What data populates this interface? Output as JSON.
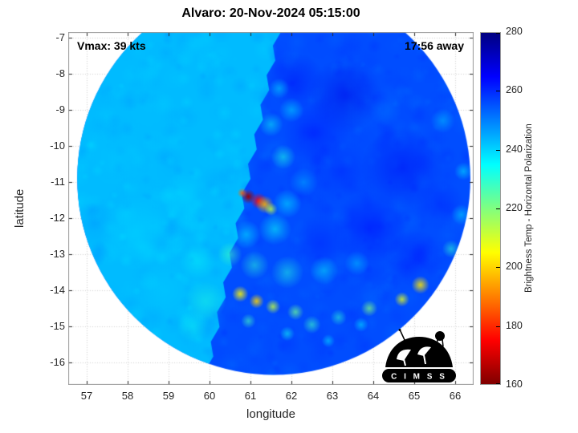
{
  "title": "Alvaro: 20-Nov-2024 05:15:00",
  "annotations": {
    "vmax": "Vmax: 39 kts",
    "away": "17:56 away"
  },
  "logo": {
    "text": "C I M S S"
  },
  "chart_data": {
    "type": "heatmap",
    "title": "Alvaro: 20-Nov-2024 05:15:00",
    "xlabel": "longitude",
    "ylabel": "latitude",
    "xlim": [
      56.55,
      66.45
    ],
    "ylim": [
      -16.62,
      -6.84
    ],
    "x_ticks": [
      57,
      58,
      59,
      60,
      61,
      62,
      63,
      64,
      65,
      66
    ],
    "y_ticks": [
      -7,
      -8,
      -9,
      -10,
      -11,
      -12,
      -13,
      -14,
      -15,
      -16
    ],
    "grid": true,
    "colorbar": {
      "label": "Brightness Temp - Horizontal Polarization",
      "min": 160,
      "max": 280,
      "ticks": [
        160,
        180,
        200,
        220,
        240,
        260,
        280
      ],
      "colormap": "jet_reversed",
      "position": "right"
    },
    "swath": {
      "center": [
        61.57,
        -10.9
      ],
      "radius_deg": 4.8,
      "seam": [
        [
          61.47,
          -7.95
        ],
        [
          59.96,
          -16.13
        ]
      ],
      "left_base_temp": 243,
      "right_base_temp": 256
    },
    "features": [
      {
        "lon": 63.3,
        "lat": -8.6,
        "temp": 268,
        "r": 0.9,
        "a": 0.45
      },
      {
        "lon": 64.7,
        "lat": -10.6,
        "temp": 266,
        "r": 1.0,
        "a": 0.45
      },
      {
        "lon": 62.6,
        "lat": -9.6,
        "temp": 264,
        "r": 0.8,
        "a": 0.4
      },
      {
        "lon": 63.9,
        "lat": -12.3,
        "temp": 265,
        "r": 0.9,
        "a": 0.45
      },
      {
        "lon": 62.7,
        "lat": -12.7,
        "temp": 262,
        "r": 0.7,
        "a": 0.4
      },
      {
        "lon": 65.0,
        "lat": -13.1,
        "temp": 263,
        "r": 0.7,
        "a": 0.4
      },
      {
        "lon": 62.1,
        "lat": -8.2,
        "temp": 266,
        "r": 0.7,
        "a": 0.4
      },
      {
        "lon": 65.6,
        "lat": -11.6,
        "temp": 262,
        "r": 0.6,
        "a": 0.4
      },
      {
        "lon": 63.2,
        "lat": -10.7,
        "temp": 261,
        "r": 0.8,
        "a": 0.35
      },
      {
        "lon": 62.3,
        "lat": -10.9,
        "temp": 259,
        "r": 0.5,
        "a": 0.4
      },
      {
        "lon": 58.2,
        "lat": -12.4,
        "temp": 238,
        "r": 0.9,
        "a": 0.35
      },
      {
        "lon": 57.7,
        "lat": -10.3,
        "temp": 241,
        "r": 0.8,
        "a": 0.3
      },
      {
        "lon": 58.9,
        "lat": -14.0,
        "temp": 240,
        "r": 0.7,
        "a": 0.3
      },
      {
        "lon": 58.5,
        "lat": -8.9,
        "temp": 242,
        "r": 0.7,
        "a": 0.3
      },
      {
        "lon": 59.4,
        "lat": -11.4,
        "temp": 237,
        "r": 0.6,
        "a": 0.3
      },
      {
        "lon": 57.2,
        "lat": -12.1,
        "temp": 248,
        "r": 0.6,
        "a": 0.3
      },
      {
        "lon": 59.9,
        "lat": -14.3,
        "temp": 231,
        "r": 0.5,
        "a": 0.4
      },
      {
        "lon": 59.6,
        "lat": -15.0,
        "temp": 233,
        "r": 0.4,
        "a": 0.35
      },
      {
        "lon": 59.7,
        "lat": -13.2,
        "temp": 234,
        "r": 0.45,
        "a": 0.35
      },
      {
        "lon": 61.9,
        "lat": -11.6,
        "temp": 238,
        "r": 0.35,
        "a": 0.55
      },
      {
        "lon": 61.6,
        "lat": -12.3,
        "temp": 234,
        "r": 0.4,
        "a": 0.55
      },
      {
        "lon": 60.9,
        "lat": -12.45,
        "temp": 236,
        "r": 0.35,
        "a": 0.5
      },
      {
        "lon": 62.3,
        "lat": -11.0,
        "temp": 242,
        "r": 0.35,
        "a": 0.45
      },
      {
        "lon": 61.8,
        "lat": -10.3,
        "temp": 232,
        "r": 0.3,
        "a": 0.55
      },
      {
        "lon": 61.5,
        "lat": -9.4,
        "temp": 234,
        "r": 0.3,
        "a": 0.5
      },
      {
        "lon": 62.0,
        "lat": -9.0,
        "temp": 237,
        "r": 0.3,
        "a": 0.45
      },
      {
        "lon": 61.7,
        "lat": -8.4,
        "temp": 236,
        "r": 0.25,
        "a": 0.45
      },
      {
        "lon": 60.95,
        "lat": -11.4,
        "temp": 163,
        "r": 0.18,
        "a": 0.95
      },
      {
        "lon": 61.2,
        "lat": -11.52,
        "temp": 176,
        "r": 0.2,
        "a": 0.9
      },
      {
        "lon": 61.35,
        "lat": -11.62,
        "temp": 196,
        "r": 0.22,
        "a": 0.85
      },
      {
        "lon": 61.5,
        "lat": -11.75,
        "temp": 212,
        "r": 0.16,
        "a": 0.8
      },
      {
        "lon": 60.8,
        "lat": -11.3,
        "temp": 186,
        "r": 0.12,
        "a": 0.85
      },
      {
        "lon": 60.5,
        "lat": -13.0,
        "temp": 228,
        "r": 0.3,
        "a": 0.55
      },
      {
        "lon": 61.1,
        "lat": -13.3,
        "temp": 230,
        "r": 0.35,
        "a": 0.5
      },
      {
        "lon": 61.9,
        "lat": -13.5,
        "temp": 231,
        "r": 0.4,
        "a": 0.5
      },
      {
        "lon": 62.8,
        "lat": -13.45,
        "temp": 234,
        "r": 0.35,
        "a": 0.45
      },
      {
        "lon": 63.6,
        "lat": -13.25,
        "temp": 238,
        "r": 0.3,
        "a": 0.4
      },
      {
        "lon": 60.75,
        "lat": -14.1,
        "temp": 204,
        "r": 0.2,
        "a": 0.85
      },
      {
        "lon": 61.15,
        "lat": -14.3,
        "temp": 200,
        "r": 0.18,
        "a": 0.85
      },
      {
        "lon": 61.55,
        "lat": -14.45,
        "temp": 212,
        "r": 0.18,
        "a": 0.8
      },
      {
        "lon": 62.1,
        "lat": -14.6,
        "temp": 222,
        "r": 0.2,
        "a": 0.7
      },
      {
        "lon": 65.15,
        "lat": -13.85,
        "temp": 202,
        "r": 0.22,
        "a": 0.85
      },
      {
        "lon": 64.7,
        "lat": -14.25,
        "temp": 208,
        "r": 0.18,
        "a": 0.8
      },
      {
        "lon": 63.9,
        "lat": -14.5,
        "temp": 220,
        "r": 0.2,
        "a": 0.7
      },
      {
        "lon": 62.5,
        "lat": -14.95,
        "temp": 228,
        "r": 0.22,
        "a": 0.6
      },
      {
        "lon": 63.15,
        "lat": -14.75,
        "temp": 230,
        "r": 0.2,
        "a": 0.55
      },
      {
        "lon": 61.9,
        "lat": -15.2,
        "temp": 233,
        "r": 0.18,
        "a": 0.55
      },
      {
        "lon": 60.95,
        "lat": -14.85,
        "temp": 227,
        "r": 0.18,
        "a": 0.6
      },
      {
        "lon": 63.7,
        "lat": -14.95,
        "temp": 235,
        "r": 0.18,
        "a": 0.5
      },
      {
        "lon": 62.9,
        "lat": -15.4,
        "temp": 236,
        "r": 0.16,
        "a": 0.5
      },
      {
        "lon": 65.9,
        "lat": -12.85,
        "temp": 230,
        "r": 0.22,
        "a": 0.55
      },
      {
        "lon": 66.15,
        "lat": -11.9,
        "temp": 238,
        "r": 0.25,
        "a": 0.5
      },
      {
        "lon": 65.7,
        "lat": -9.3,
        "temp": 241,
        "r": 0.3,
        "a": 0.45
      },
      {
        "lon": 66.2,
        "lat": -10.7,
        "temp": 236,
        "r": 0.22,
        "a": 0.5
      },
      {
        "lon": 64.3,
        "lat": -9.0,
        "temp": 250,
        "r": 0.4,
        "a": 0.4
      }
    ]
  }
}
